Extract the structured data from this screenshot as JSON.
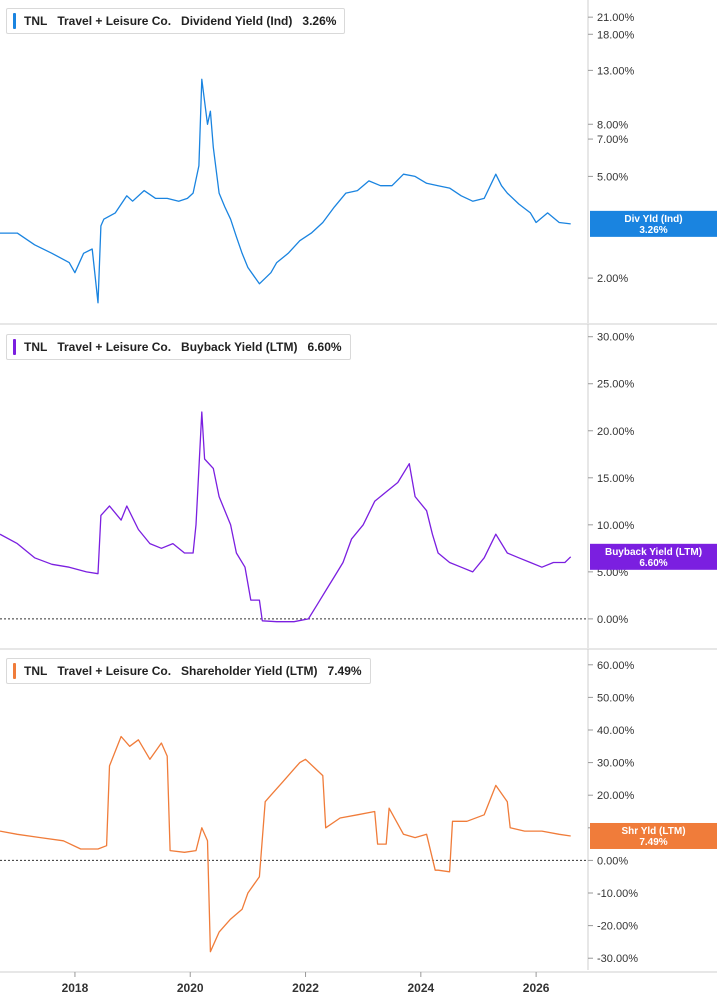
{
  "chart_data": [
    {
      "type": "line",
      "ticker": "TNL",
      "company": "Travel + Leisure Co.",
      "metric": "Dividend Yield (Ind)",
      "current_value": "3.26%",
      "tag_label": "Div Yld (Ind)",
      "color": "#1a84e0",
      "scale": "log",
      "ylim": [
        1.5,
        22
      ],
      "yticks": [
        "21.00%",
        "18.00%",
        "13.00%",
        "8.00%",
        "7.00%",
        "5.00%",
        "2.00%"
      ],
      "ytick_values": [
        21,
        18,
        13,
        8,
        7,
        5,
        2
      ],
      "zero_line": false,
      "x": [
        2016.7,
        2017.0,
        2017.3,
        2017.6,
        2017.9,
        2018.0,
        2018.15,
        2018.3,
        2018.4,
        2018.45,
        2018.5,
        2018.7,
        2018.9,
        2019.0,
        2019.2,
        2019.4,
        2019.6,
        2019.8,
        2019.95,
        2020.05,
        2020.15,
        2020.2,
        2020.3,
        2020.35,
        2020.4,
        2020.5,
        2020.6,
        2020.7,
        2020.8,
        2020.9,
        2021.0,
        2021.2,
        2021.4,
        2021.5,
        2021.7,
        2021.9,
        2022.1,
        2022.3,
        2022.5,
        2022.7,
        2022.9,
        2023.1,
        2023.3,
        2023.5,
        2023.7,
        2023.9,
        2024.1,
        2024.3,
        2024.5,
        2024.7,
        2024.9,
        2025.1,
        2025.3,
        2025.4,
        2025.5,
        2025.7,
        2025.9,
        2026.0,
        2026.2,
        2026.4,
        2026.6
      ],
      "values": [
        3.0,
        3.0,
        2.7,
        2.5,
        2.3,
        2.1,
        2.5,
        2.6,
        1.6,
        3.2,
        3.4,
        3.6,
        4.2,
        4.0,
        4.4,
        4.1,
        4.1,
        4.0,
        4.1,
        4.3,
        5.5,
        12.0,
        8.0,
        9.0,
        6.5,
        4.3,
        3.8,
        3.4,
        2.9,
        2.5,
        2.2,
        1.9,
        2.1,
        2.3,
        2.5,
        2.8,
        3.0,
        3.3,
        3.8,
        4.3,
        4.4,
        4.8,
        4.6,
        4.6,
        5.1,
        5.0,
        4.7,
        4.6,
        4.5,
        4.2,
        4.0,
        4.1,
        5.1,
        4.6,
        4.3,
        3.9,
        3.6,
        3.3,
        3.6,
        3.3,
        3.26
      ]
    },
    {
      "type": "line",
      "ticker": "TNL",
      "company": "Travel + Leisure Co.",
      "metric": "Buyback Yield (LTM)",
      "current_value": "6.60%",
      "tag_label": "Buyback Yield (LTM)",
      "color": "#7b1fe0",
      "scale": "linear",
      "ylim": [
        -1.5,
        30.5
      ],
      "yticks": [
        "30.00%",
        "25.00%",
        "20.00%",
        "15.00%",
        "10.00%",
        "5.00%",
        "0.00%"
      ],
      "ytick_values": [
        30,
        25,
        20,
        15,
        10,
        5,
        0
      ],
      "zero_line": true,
      "x": [
        2016.7,
        2017.0,
        2017.3,
        2017.6,
        2017.9,
        2018.2,
        2018.4,
        2018.45,
        2018.6,
        2018.8,
        2018.9,
        2019.1,
        2019.3,
        2019.5,
        2019.7,
        2019.9,
        2020.05,
        2020.1,
        2020.2,
        2020.25,
        2020.4,
        2020.5,
        2020.7,
        2020.8,
        2020.95,
        2021.05,
        2021.2,
        2021.25,
        2021.5,
        2021.8,
        2022.05,
        2022.2,
        2022.4,
        2022.5,
        2022.65,
        2022.8,
        2023.0,
        2023.2,
        2023.4,
        2023.6,
        2023.8,
        2023.9,
        2024.1,
        2024.2,
        2024.3,
        2024.5,
        2024.7,
        2024.9,
        2025.1,
        2025.3,
        2025.5,
        2025.7,
        2025.9,
        2026.1,
        2026.3,
        2026.5,
        2026.6
      ],
      "values": [
        9.0,
        8.0,
        6.5,
        5.8,
        5.5,
        5.0,
        4.8,
        11.0,
        12.0,
        10.5,
        12.0,
        9.5,
        8.0,
        7.5,
        8.0,
        7.0,
        7.0,
        10.0,
        22.0,
        17.0,
        16.0,
        13.0,
        10.0,
        7.0,
        5.5,
        2.0,
        2.0,
        -0.2,
        -0.3,
        -0.3,
        0.0,
        1.5,
        3.5,
        4.5,
        6.0,
        8.5,
        10.0,
        12.5,
        13.5,
        14.5,
        16.5,
        13.0,
        11.5,
        9.0,
        7.0,
        6.0,
        5.5,
        5.0,
        6.5,
        9.0,
        7.0,
        6.5,
        6.0,
        5.5,
        6.0,
        6.0,
        6.6
      ]
    },
    {
      "type": "line",
      "ticker": "TNL",
      "company": "Travel + Leisure Co.",
      "metric": "Shareholder Yield (LTM)",
      "current_value": "7.49%",
      "tag_label": "Shr Yld (LTM)",
      "color": "#f07c3a",
      "scale": "linear",
      "ylim": [
        -33,
        63
      ],
      "yticks": [
        "60.00%",
        "50.00%",
        "40.00%",
        "30.00%",
        "20.00%",
        "10.00%",
        "0.00%",
        "-10.00%",
        "-20.00%",
        "-30.00%"
      ],
      "ytick_values": [
        60,
        50,
        40,
        30,
        20,
        10,
        0,
        -10,
        -20,
        -30
      ],
      "zero_line": true,
      "x": [
        2016.7,
        2017.0,
        2017.4,
        2017.8,
        2018.1,
        2018.4,
        2018.55,
        2018.6,
        2018.8,
        2018.95,
        2019.1,
        2019.3,
        2019.5,
        2019.6,
        2019.65,
        2019.9,
        2020.1,
        2020.2,
        2020.3,
        2020.35,
        2020.5,
        2020.7,
        2020.9,
        2021.0,
        2021.2,
        2021.3,
        2021.4,
        2021.6,
        2021.8,
        2021.9,
        2022.0,
        2022.3,
        2022.35,
        2022.6,
        2022.9,
        2023.2,
        2023.25,
        2023.4,
        2023.45,
        2023.7,
        2023.9,
        2024.1,
        2024.25,
        2024.3,
        2024.5,
        2024.55,
        2024.8,
        2025.1,
        2025.3,
        2025.5,
        2025.55,
        2025.8,
        2026.1,
        2026.4,
        2026.6
      ],
      "values": [
        9.0,
        8.0,
        7.0,
        6.0,
        3.5,
        3.5,
        4.5,
        29.0,
        38.0,
        35.0,
        37.0,
        31.0,
        36.0,
        32.0,
        3.0,
        2.5,
        3.0,
        10.0,
        6.0,
        -28.0,
        -22.0,
        -18.0,
        -15.0,
        -10.0,
        -5.0,
        18.0,
        20.0,
        24.0,
        28.0,
        30.0,
        31.0,
        26.0,
        10.0,
        13.0,
        14.0,
        15.0,
        5.0,
        5.0,
        16.0,
        8.0,
        7.0,
        8.0,
        -3.0,
        -3.0,
        -3.5,
        12.0,
        12.0,
        14.0,
        23.0,
        18.0,
        10.0,
        9.0,
        9.0,
        8.0,
        7.49
      ]
    }
  ],
  "x_axis": {
    "labels": [
      "2018",
      "2020",
      "2022",
      "2024",
      "2026"
    ],
    "values": [
      2018,
      2020,
      2022,
      2024,
      2026
    ],
    "range": [
      2016.7,
      2026.9
    ]
  }
}
